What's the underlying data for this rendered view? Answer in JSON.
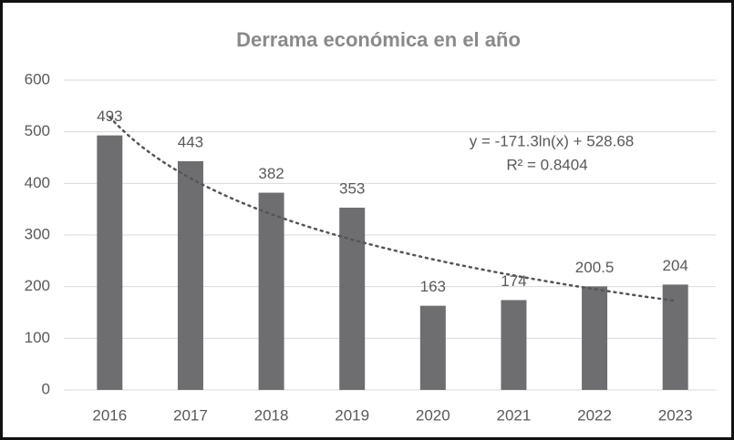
{
  "chart_data": {
    "type": "bar",
    "title": "Derrama económica en el año",
    "categories": [
      "2016",
      "2017",
      "2018",
      "2019",
      "2020",
      "2021",
      "2022",
      "2023"
    ],
    "values": [
      493,
      443,
      382,
      353,
      163,
      174,
      200.5,
      204
    ],
    "color": "#6e6e70",
    "ylim": [
      0,
      600
    ],
    "yticks": [
      0,
      100,
      200,
      300,
      400,
      500,
      600
    ],
    "grid": true,
    "trendline": {
      "kind": "logarithmic",
      "color": "#555555",
      "equation": "y = -171.3ln(x) + 528.68",
      "r_squared": "R² = 0.8404"
    }
  }
}
